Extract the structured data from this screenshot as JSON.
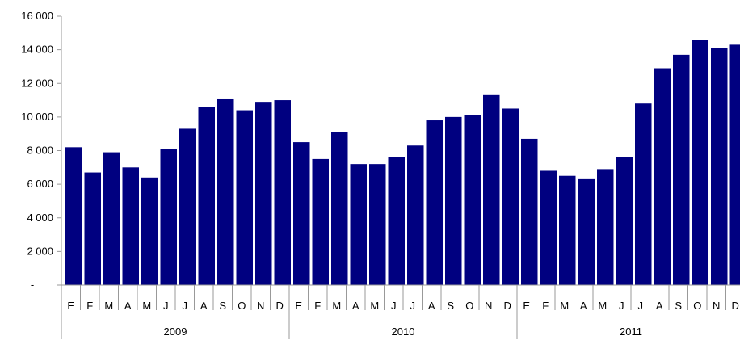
{
  "chart_data": {
    "type": "bar",
    "bar_color": "#000080",
    "grid": false,
    "ylim": [
      0,
      16000
    ],
    "yticks": [
      {
        "value": 0,
        "label": "-"
      },
      {
        "value": 2000,
        "label": "2 000"
      },
      {
        "value": 4000,
        "label": "4 000"
      },
      {
        "value": 6000,
        "label": "6 000"
      },
      {
        "value": 8000,
        "label": "8 000"
      },
      {
        "value": 10000,
        "label": "10 000"
      },
      {
        "value": 12000,
        "label": "12 000"
      },
      {
        "value": 14000,
        "label": "14 000"
      },
      {
        "value": 16000,
        "label": "16 000"
      }
    ],
    "groups": [
      {
        "label": "2009",
        "categories": [
          "E",
          "F",
          "M",
          "A",
          "M",
          "J",
          "J",
          "A",
          "S",
          "O",
          "N",
          "D"
        ]
      },
      {
        "label": "2010",
        "categories": [
          "E",
          "F",
          "M",
          "A",
          "M",
          "J",
          "J",
          "A",
          "S",
          "O",
          "N",
          "D"
        ]
      },
      {
        "label": "2011",
        "categories": [
          "E",
          "F",
          "M",
          "A",
          "M",
          "J",
          "J",
          "A",
          "S",
          "O",
          "N",
          "D"
        ]
      }
    ],
    "values": [
      8200,
      6700,
      7900,
      7000,
      6400,
      8100,
      9300,
      10600,
      11100,
      10400,
      10900,
      11000,
      8500,
      7500,
      9100,
      7200,
      7200,
      7600,
      8300,
      9800,
      10000,
      10100,
      11300,
      10500,
      8700,
      6800,
      6500,
      6300,
      6900,
      7600,
      10800,
      12900,
      13700,
      14600,
      14100,
      14300
    ]
  }
}
